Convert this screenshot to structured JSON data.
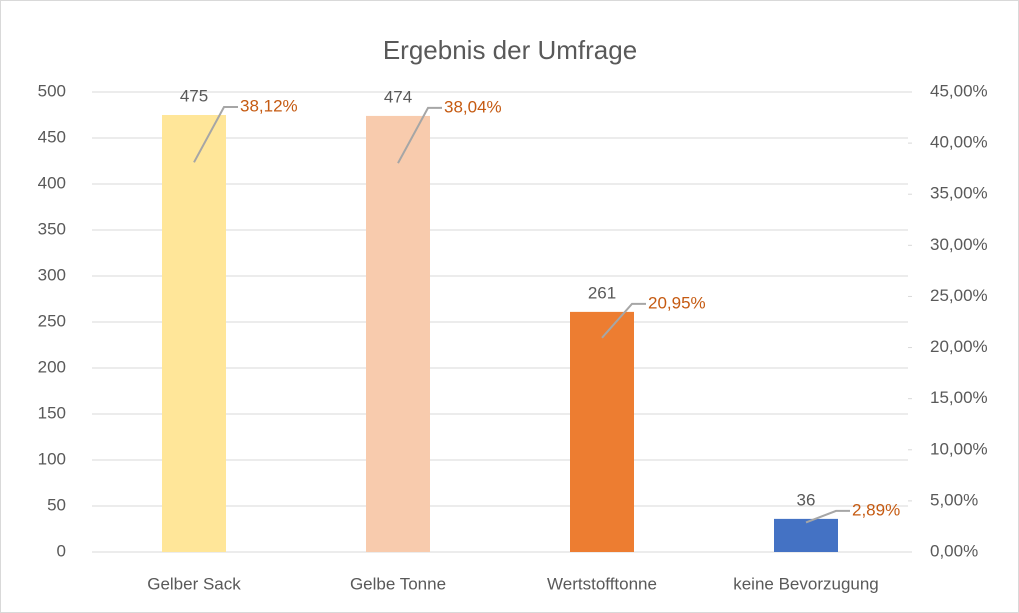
{
  "chart_data": {
    "type": "bar",
    "title": "Ergebnis der Umfrage",
    "categories": [
      "Gelber Sack",
      "Gelbe Tonne",
      "Wertstofftonne",
      "keine Bevorzugung"
    ],
    "series": [
      {
        "colors": [
          "#FFE699",
          "#F8CBAD",
          "#ED7D31",
          "#4472C4"
        ],
        "values": [
          475,
          474,
          261,
          36
        ]
      },
      {
        "axis": "y2",
        "color": "#C55A11",
        "values": [
          38.12,
          38.04,
          20.95,
          2.89
        ],
        "value_labels": [
          "38,12%",
          "38,04%",
          "20,95%",
          "2,89%"
        ]
      }
    ],
    "ylim": [
      0,
      500
    ],
    "yticks": [
      0,
      50,
      100,
      150,
      200,
      250,
      300,
      350,
      400,
      450,
      500
    ],
    "y2lim": [
      0,
      45
    ],
    "y2ticks": [
      {
        "value": 0,
        "label": "0,00%"
      },
      {
        "value": 5,
        "label": "5,00%"
      },
      {
        "value": 10,
        "label": "10,00%"
      },
      {
        "value": 15,
        "label": "15,00%"
      },
      {
        "value": 20,
        "label": "20,00%"
      },
      {
        "value": 25,
        "label": "25,00%"
      },
      {
        "value": 30,
        "label": "30,00%"
      },
      {
        "value": 35,
        "label": "35,00%"
      },
      {
        "value": 40,
        "label": "40,00%"
      },
      {
        "value": 45,
        "label": "45,00%"
      }
    ],
    "grid": true
  }
}
